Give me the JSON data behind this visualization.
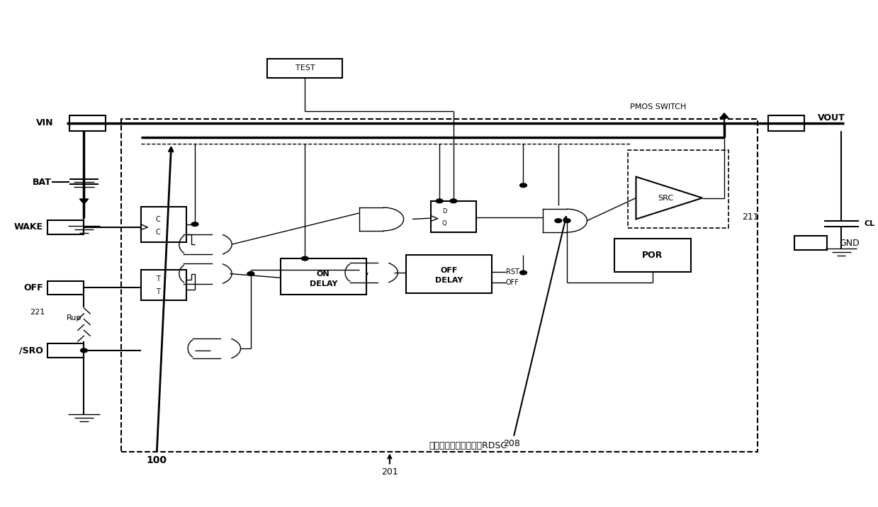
{
  "bg_color": "#ffffff",
  "lw_thin": 1.0,
  "lw_med": 1.5,
  "lw_thick": 2.5,
  "fig_w": 12.39,
  "fig_h": 7.16,
  "rdsc_label": "复位和深度睡眠控制器RDSC",
  "port_labels": [
    "VIN",
    "BAT",
    "WAKE",
    "OFF",
    "/SRO",
    "VOUT",
    "CL",
    "PMOS SWITCH",
    "SRC",
    "GND",
    "RST",
    "OFF",
    "Rup",
    "221"
  ],
  "block_labels": [
    [
      "ON",
      "DELAY"
    ],
    [
      "OFF",
      "DELAY"
    ],
    [
      "POR"
    ],
    [
      "TEST"
    ],
    [
      "SRC"
    ]
  ],
  "annotation_labels": [
    "100",
    "208",
    "201",
    "211"
  ]
}
